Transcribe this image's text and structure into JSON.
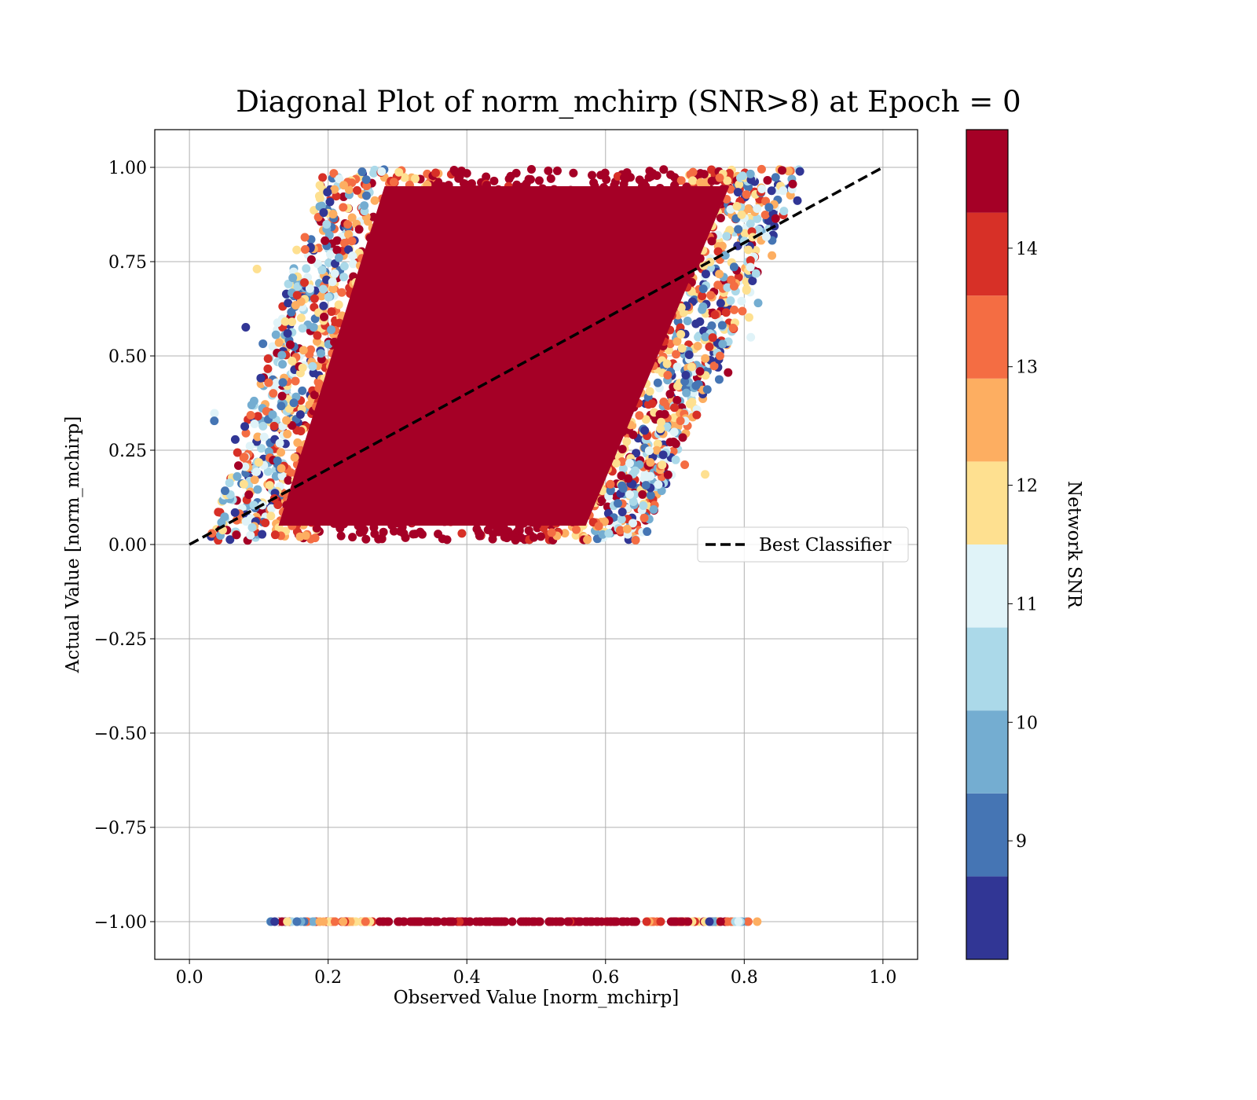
{
  "chart_data": {
    "type": "scatter",
    "title": "Diagonal Plot of norm_mchirp (SNR>8) at Epoch = 0",
    "xlabel": "Observed Value [norm_mchirp]",
    "ylabel": "Actual Value [norm_mchirp]",
    "xlim": [
      -0.05,
      1.05
    ],
    "ylim": [
      -1.1,
      1.1
    ],
    "xticks": [
      0.0,
      0.2,
      0.4,
      0.6,
      0.8,
      1.0
    ],
    "xtick_labels": [
      "0.0",
      "0.2",
      "0.4",
      "0.6",
      "0.8",
      "1.0"
    ],
    "yticks": [
      1.0,
      0.75,
      0.5,
      0.25,
      0.0,
      -0.25,
      -0.5,
      -0.75,
      -1.0
    ],
    "ytick_labels": [
      "1.00",
      "0.75",
      "0.50",
      "0.25",
      "0.00",
      "−0.25",
      "−0.50",
      "−0.75",
      "−1.00"
    ],
    "grid": true,
    "legend": {
      "placement": "center-right",
      "entries": [
        "Best Classifier"
      ]
    },
    "series": [
      {
        "name": "Best Classifier",
        "kind": "line",
        "style": "dashed",
        "color": "#000000",
        "x": [
          0.0,
          1.0
        ],
        "y": [
          0.0,
          1.0
        ]
      }
    ],
    "scatter_regions": [
      {
        "description_value": "dense parallelogram band",
        "x_at_y0": [
          0.05,
          0.63
        ],
        "x_at_y1": [
          0.22,
          0.86
        ],
        "y_range": [
          0.0,
          1.0
        ]
      },
      {
        "description_value": "horizontal strip",
        "x_range": [
          0.11,
          0.82
        ],
        "y": -1.0
      }
    ],
    "colorbar": {
      "label": "Network SNR",
      "range": [
        8.0,
        15.0
      ],
      "ticks": [
        9,
        10,
        11,
        12,
        13,
        14
      ],
      "tick_labels": [
        "9",
        "10",
        "11",
        "12",
        "13",
        "14"
      ],
      "colors": [
        "#313695",
        "#4575b4",
        "#74add1",
        "#abd9e9",
        "#e0f3f8",
        "#fee090",
        "#fdae61",
        "#f46d43",
        "#d73027",
        "#a50026"
      ]
    }
  }
}
